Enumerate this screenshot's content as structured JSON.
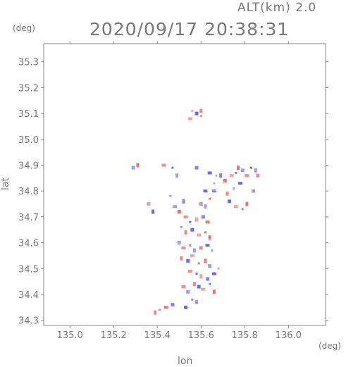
{
  "header": {
    "alt_label": "ALT(km) 2.0",
    "timestamp": "2020/09/17 20:38:31"
  },
  "chart_data": {
    "type": "scatter",
    "title": "2020/09/17 20:38:31",
    "subtitle": "ALT(km) 2.0",
    "xlabel": "lon",
    "ylabel": "lat",
    "xunit": "(deg)",
    "yunit": "(deg)",
    "xlim": [
      134.88,
      136.17
    ],
    "ylim": [
      34.28,
      35.37
    ],
    "xticks": [
      135.0,
      135.2,
      135.4,
      135.6,
      135.8,
      136.0
    ],
    "xtick_labels": [
      "135.0",
      "135.2",
      "135.4",
      "135.6",
      "135.8",
      "136.0"
    ],
    "yticks": [
      34.3,
      34.4,
      34.5,
      34.6,
      34.7,
      34.8,
      34.9,
      35.0,
      35.1,
      35.2,
      35.3
    ],
    "ytick_labels": [
      "34.3",
      "34.4",
      "34.5",
      "34.6",
      "34.7",
      "34.8",
      "34.9",
      "35.0",
      "35.1",
      "35.2",
      "35.3"
    ],
    "grid": true,
    "colors": {
      "positive": "#f06060",
      "negative": "#5a5af0",
      "axis": "#888888"
    },
    "series": [
      {
        "points": [
          [
            135.56,
            35.11,
            1
          ],
          [
            135.6,
            35.11,
            1
          ],
          [
            135.58,
            35.1,
            -1
          ],
          [
            135.55,
            35.08,
            1
          ],
          [
            135.6,
            35.09,
            1
          ],
          [
            135.31,
            34.9,
            1
          ],
          [
            135.29,
            34.89,
            -1
          ],
          [
            135.43,
            34.9,
            1
          ],
          [
            135.47,
            34.89,
            -1
          ],
          [
            135.49,
            34.86,
            -1
          ],
          [
            135.58,
            34.89,
            -1
          ],
          [
            135.64,
            34.87,
            -1
          ],
          [
            135.67,
            34.86,
            1
          ],
          [
            135.69,
            34.86,
            -1
          ],
          [
            135.71,
            34.84,
            1
          ],
          [
            135.74,
            34.86,
            1
          ],
          [
            135.76,
            34.87,
            -1
          ],
          [
            135.77,
            34.89,
            1
          ],
          [
            135.79,
            34.88,
            -1
          ],
          [
            135.81,
            34.86,
            1
          ],
          [
            135.83,
            34.89,
            -1
          ],
          [
            135.85,
            34.88,
            -1
          ],
          [
            135.86,
            34.86,
            1
          ],
          [
            135.78,
            34.83,
            -1
          ],
          [
            135.75,
            34.81,
            -1
          ],
          [
            135.72,
            34.79,
            1
          ],
          [
            135.73,
            34.76,
            -1
          ],
          [
            135.76,
            34.74,
            1
          ],
          [
            135.79,
            34.73,
            -1
          ],
          [
            135.81,
            34.75,
            1
          ],
          [
            135.84,
            34.8,
            -1
          ],
          [
            135.66,
            34.8,
            -1
          ],
          [
            135.64,
            34.77,
            1
          ],
          [
            135.62,
            34.74,
            -1
          ],
          [
            135.6,
            34.75,
            1
          ],
          [
            135.62,
            34.8,
            -1
          ],
          [
            135.66,
            34.83,
            1
          ],
          [
            135.52,
            34.76,
            -1
          ],
          [
            135.5,
            34.72,
            1
          ],
          [
            135.48,
            34.74,
            -1
          ],
          [
            135.46,
            34.78,
            1
          ],
          [
            135.38,
            34.72,
            -1
          ],
          [
            135.36,
            34.75,
            1
          ],
          [
            135.53,
            34.7,
            1
          ],
          [
            135.55,
            34.68,
            -1
          ],
          [
            135.58,
            34.69,
            1
          ],
          [
            135.61,
            34.7,
            -1
          ],
          [
            135.63,
            34.68,
            1
          ],
          [
            135.51,
            34.66,
            -1
          ],
          [
            135.53,
            34.64,
            1
          ],
          [
            135.56,
            34.65,
            -1
          ],
          [
            135.59,
            34.63,
            1
          ],
          [
            135.62,
            34.64,
            -1
          ],
          [
            135.64,
            34.62,
            1
          ],
          [
            135.5,
            34.6,
            -1
          ],
          [
            135.52,
            34.58,
            1
          ],
          [
            135.55,
            34.59,
            1
          ],
          [
            135.57,
            34.57,
            -1
          ],
          [
            135.6,
            34.58,
            1
          ],
          [
            135.63,
            34.59,
            -1
          ],
          [
            135.65,
            34.57,
            -1
          ],
          [
            135.51,
            34.54,
            1
          ],
          [
            135.54,
            34.53,
            -1
          ],
          [
            135.56,
            34.55,
            1
          ],
          [
            135.59,
            34.52,
            -1
          ],
          [
            135.62,
            34.53,
            1
          ],
          [
            135.64,
            34.51,
            -1
          ],
          [
            135.55,
            34.49,
            1
          ],
          [
            135.58,
            34.48,
            -1
          ],
          [
            135.6,
            34.47,
            1
          ],
          [
            135.63,
            34.46,
            -1
          ],
          [
            135.66,
            34.48,
            -1
          ],
          [
            135.68,
            34.5,
            1
          ],
          [
            135.57,
            34.44,
            1
          ],
          [
            135.59,
            34.43,
            -1
          ],
          [
            135.61,
            34.42,
            1
          ],
          [
            135.64,
            34.44,
            -1
          ],
          [
            135.66,
            34.41,
            1
          ],
          [
            135.54,
            34.41,
            -1
          ],
          [
            135.52,
            34.43,
            1
          ],
          [
            135.56,
            34.38,
            1
          ],
          [
            135.58,
            34.37,
            -1
          ],
          [
            135.47,
            34.36,
            -1
          ],
          [
            135.44,
            34.35,
            1
          ],
          [
            135.41,
            34.34,
            -1
          ],
          [
            135.39,
            34.33,
            1
          ],
          [
            135.53,
            34.35,
            -1
          ]
        ]
      }
    ]
  }
}
